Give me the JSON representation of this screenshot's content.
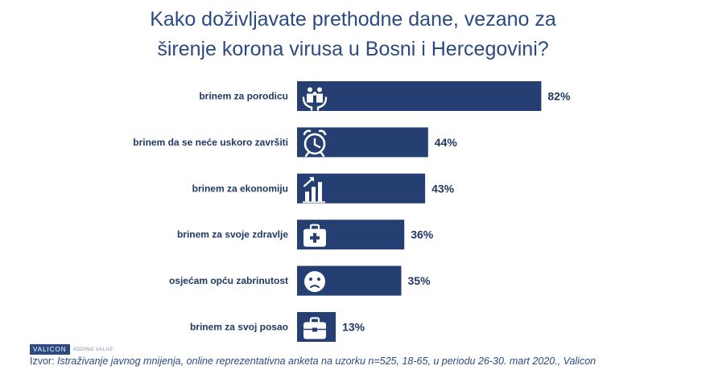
{
  "title": {
    "line1": "Kako doživljavate prethodne dane, vezano za",
    "line2": "širenje korona virusa u Bosni i Hercegovini?"
  },
  "colors": {
    "bar": "#263f73",
    "text": "#1f3864",
    "title": "#2c4a82"
  },
  "chart_data": {
    "type": "bar",
    "orientation": "horizontal",
    "title": "Kako doživljavate prethodne dane, vezano za širenje korona virusa u Bosni i Hercegovini?",
    "categories": [
      "brinem za porodicu",
      "brinem da se neće uskoro završiti",
      "brinem za ekonomiju",
      "brinem za svoje zdravlje",
      "osjećam opću zabrinutost",
      "brinem za svoj posao"
    ],
    "values": [
      82,
      44,
      43,
      36,
      35,
      13
    ],
    "value_labels": [
      "82%",
      "44%",
      "43%",
      "36%",
      "35%",
      "13%"
    ],
    "icons": [
      "family-care-icon",
      "alarm-clock-icon",
      "growth-chart-icon",
      "medical-kit-icon",
      "worried-face-icon",
      "briefcase-icon"
    ],
    "xlim": [
      0,
      100
    ],
    "grid": false,
    "legend": "none"
  },
  "footer": {
    "logo": "VALICON",
    "tagline": "ADDING VALUE",
    "source_prefix": "Izvor: ",
    "source_text": "Istraživanje javnog mnijenja, online reprezentativna anketa na uzorku n=525, 18-65,  u periodu 26-30. mart 2020.,  Valicon"
  }
}
